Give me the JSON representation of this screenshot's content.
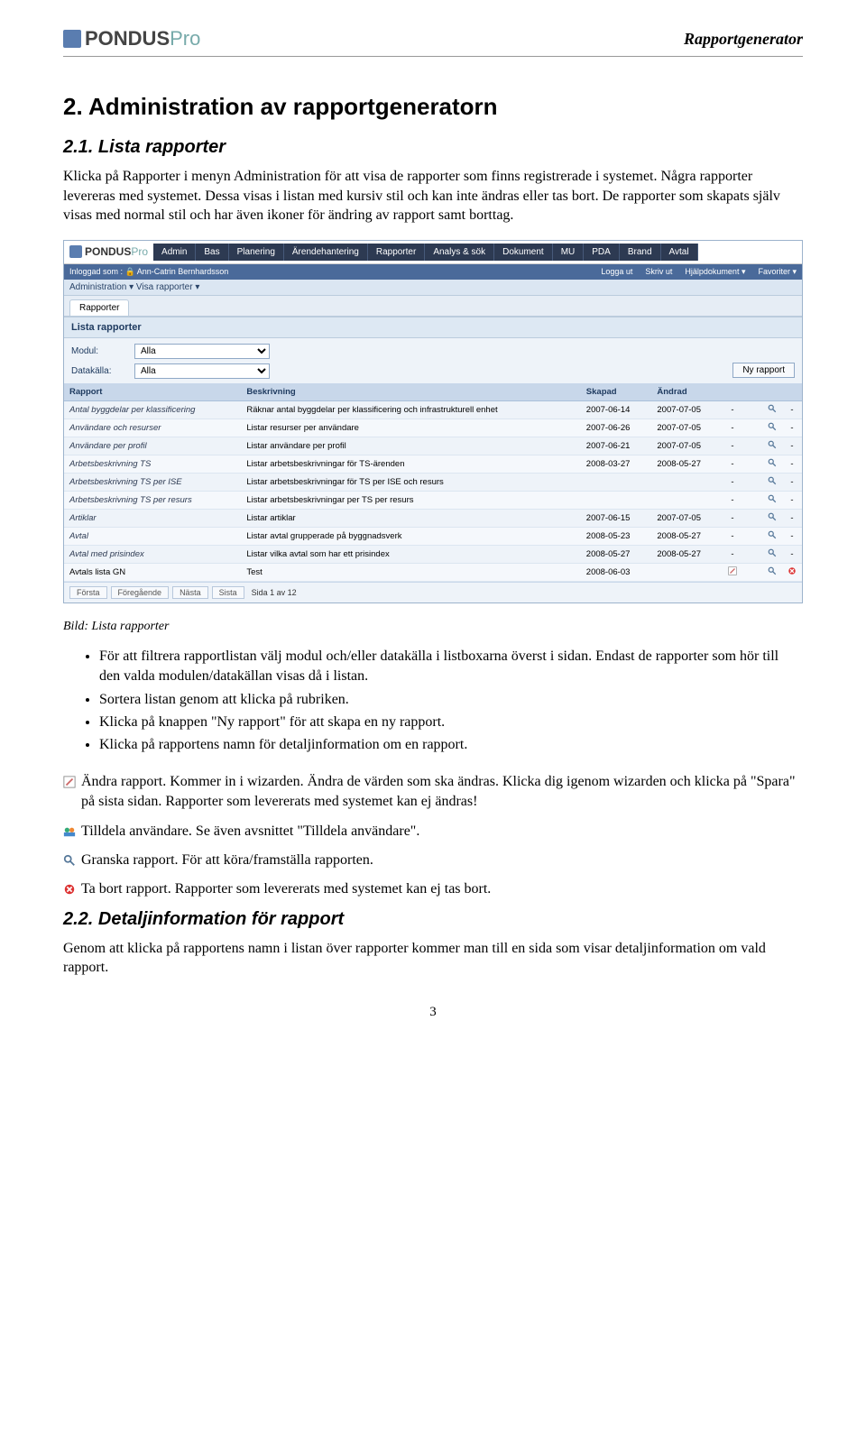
{
  "doc": {
    "brand": "PONDUS",
    "brand_suffix": "Pro",
    "header_right": "Rapportgenerator",
    "page_number": "3"
  },
  "headings": {
    "h1": "2. Administration av rapportgeneratorn",
    "h2a": "2.1.   Lista rapporter",
    "h2b": "2.2.   Detaljinformation för rapport"
  },
  "body": {
    "p1": "Klicka på Rapporter i menyn Administration för att visa de rapporter som finns registrerade i systemet. Några rapporter levereras med systemet. Dessa visas i listan med kursiv stil och kan inte ändras eller tas bort. De rapporter som skapats själv visas med normal stil och har även ikoner för ändring av rapport samt borttag.",
    "caption": "Bild: Lista rapporter",
    "bullets": [
      "För att filtrera rapportlistan välj modul och/eller datakälla i listboxarna överst i sidan. Endast de rapporter som hör till den valda modulen/datakällan visas då i listan.",
      "Sortera listan genom att klicka på rubriken.",
      "Klicka på knappen \"Ny rapport\" för att skapa en ny rapport.",
      "Klicka på rapportens namn för detaljinformation om en rapport."
    ],
    "icon_edit": "Ändra rapport. Kommer in i wizarden. Ändra de värden som ska ändras. Klicka dig igenom wizarden och klicka på \"Spara\" på sista sidan. Rapporter som levererats med systemet kan ej ändras!",
    "icon_users": "Tilldela användare. Se även avsnittet \"Tilldela användare\".",
    "icon_mag": "Granska rapport. För att köra/framställa rapporten.",
    "icon_del": "Ta bort rapport. Rapporter som levererats med systemet kan ej tas bort.",
    "p_last": "Genom att klicka på rapportens namn i listan över rapporter kommer man till en sida som visar detaljinformation om vald rapport."
  },
  "app": {
    "menu": [
      "Admin",
      "Bas",
      "Planering",
      "Ärendehantering",
      "Rapporter",
      "Analys & sök",
      "Dokument",
      "MU",
      "PDA",
      "Brand",
      "Avtal"
    ],
    "status_left": "Inloggad som :   🔒 Ann-Catrin Bernhardsson",
    "status_right": [
      "Logga ut",
      "Skriv ut",
      "Hjälpdokument ▾",
      "Favoriter ▾"
    ],
    "subbar": "Administration ▾   Visa rapporter ▾",
    "tab": "Rapporter",
    "panel_title": "Lista rapporter",
    "filter_module_label": "Modul:",
    "filter_source_label": "Datakälla:",
    "filter_all": "Alla",
    "btn_new": "Ny rapport",
    "columns": [
      "Rapport",
      "Beskrivning",
      "Skapad",
      "Ändrad",
      "",
      "",
      "",
      ""
    ],
    "rows": [
      {
        "name": "Antal byggdelar per klassificering",
        "desc": "Räknar antal byggdelar per klassificering och infrastrukturell enhet",
        "created": "2007-06-14",
        "changed": "2007-07-05",
        "edit": "-",
        "mag": true,
        "del": "-"
      },
      {
        "name": "Användare och resurser",
        "desc": "Listar resurser per användare",
        "created": "2007-06-26",
        "changed": "2007-07-05",
        "edit": "-",
        "mag": true,
        "del": "-"
      },
      {
        "name": "Användare per profil",
        "desc": "Listar användare per profil",
        "created": "2007-06-21",
        "changed": "2007-07-05",
        "edit": "-",
        "mag": true,
        "del": "-"
      },
      {
        "name": "Arbetsbeskrivning TS",
        "desc": "Listar arbetsbeskrivningar för TS-ärenden",
        "created": "2008-03-27",
        "changed": "2008-05-27",
        "edit": "-",
        "mag": true,
        "del": "-"
      },
      {
        "name": "Arbetsbeskrivning TS per ISE",
        "desc": "Listar arbetsbeskrivningar för TS per ISE och resurs",
        "created": "",
        "changed": "",
        "edit": "-",
        "mag": true,
        "del": "-"
      },
      {
        "name": "Arbetsbeskrivning TS per resurs",
        "desc": "Listar arbetsbeskrivningar per TS per resurs",
        "created": "",
        "changed": "",
        "edit": "-",
        "mag": true,
        "del": "-"
      },
      {
        "name": "Artiklar",
        "desc": "Listar artiklar",
        "created": "2007-06-15",
        "changed": "2007-07-05",
        "edit": "-",
        "mag": true,
        "del": "-"
      },
      {
        "name": "Avtal",
        "desc": "Listar avtal grupperade på byggnadsverk",
        "created": "2008-05-23",
        "changed": "2008-05-27",
        "edit": "-",
        "mag": true,
        "del": "-"
      },
      {
        "name": "Avtal med prisindex",
        "desc": "Listar vilka avtal som har ett prisindex",
        "created": "2008-05-27",
        "changed": "2008-05-27",
        "edit": "-",
        "mag": true,
        "del": "-"
      },
      {
        "name": "Avtals lista GN",
        "desc": "Test",
        "created": "2008-06-03",
        "changed": "",
        "edit": "edit",
        "mag": true,
        "del": "del",
        "normal": true
      }
    ],
    "pager": {
      "first": "Första",
      "prev": "Föregående",
      "next": "Nästa",
      "last": "Sista",
      "info": "Sida 1 av 12"
    }
  },
  "colors": {
    "menu_bg": "#2d3a52",
    "status_bg": "#4a6a9a",
    "panel_bg": "#eef3f9",
    "th_bg": "#c8d7ea",
    "border": "#9db3cc"
  }
}
